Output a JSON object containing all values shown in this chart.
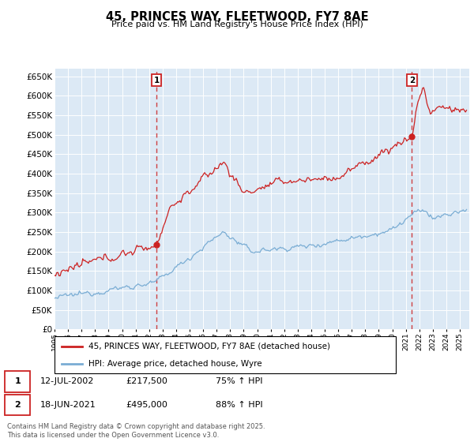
{
  "title": "45, PRINCES WAY, FLEETWOOD, FY7 8AE",
  "subtitle": "Price paid vs. HM Land Registry's House Price Index (HPI)",
  "legend_line1": "45, PRINCES WAY, FLEETWOOD, FY7 8AE (detached house)",
  "legend_line2": "HPI: Average price, detached house, Wyre",
  "annotation1_date": "12-JUL-2002",
  "annotation1_price": "£217,500",
  "annotation1_hpi": "75% ↑ HPI",
  "annotation1_year": 2002.54,
  "annotation1_value": 217500,
  "annotation2_date": "18-JUN-2021",
  "annotation2_price": "£495,000",
  "annotation2_hpi": "88% ↑ HPI",
  "annotation2_year": 2021.46,
  "annotation2_value": 495000,
  "property_color": "#cc2222",
  "hpi_color": "#7aadd4",
  "dashed_color": "#cc2222",
  "ylim": [
    0,
    670000
  ],
  "ytick_step": 50000,
  "footer": "Contains HM Land Registry data © Crown copyright and database right 2025.\nThis data is licensed under the Open Government Licence v3.0.",
  "background_color": "#dce9f5",
  "grid_color": "#ffffff"
}
